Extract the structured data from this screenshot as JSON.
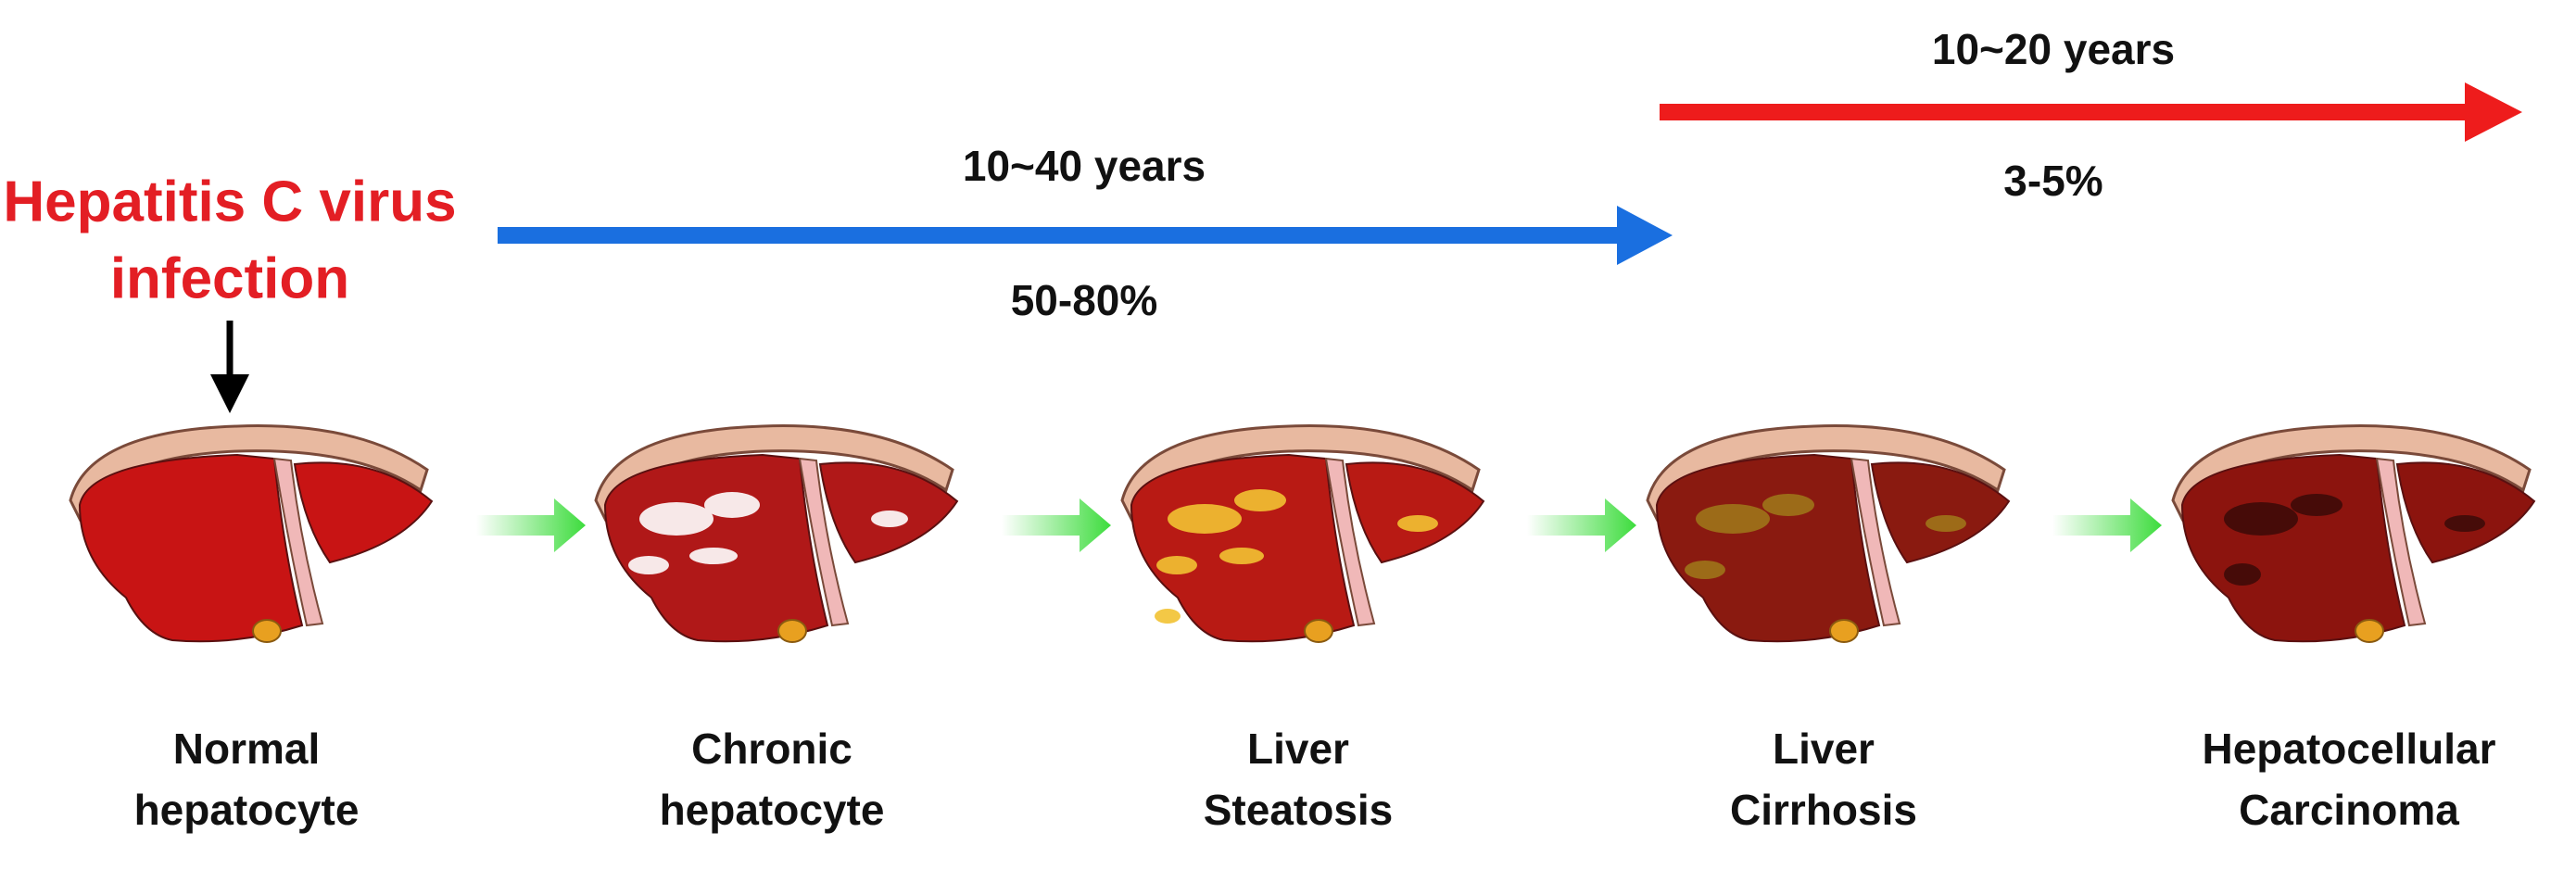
{
  "infection": {
    "lines": [
      "Hepatitis C virus",
      "infection"
    ]
  },
  "timelines": [
    {
      "duration": "10~40 years",
      "rate": "50-80%"
    },
    {
      "duration": "10~20 years",
      "rate": "3-5%"
    }
  ],
  "stages": [
    {
      "lines": [
        "Normal",
        "hepatocyte"
      ]
    },
    {
      "lines": [
        "Chronic",
        "hepatocyte"
      ]
    },
    {
      "lines": [
        "Liver",
        "Steatosis"
      ]
    },
    {
      "lines": [
        "Liver",
        "Cirrhosis"
      ]
    },
    {
      "lines": [
        "Hepatocellular",
        "Carcinoma"
      ]
    }
  ]
}
